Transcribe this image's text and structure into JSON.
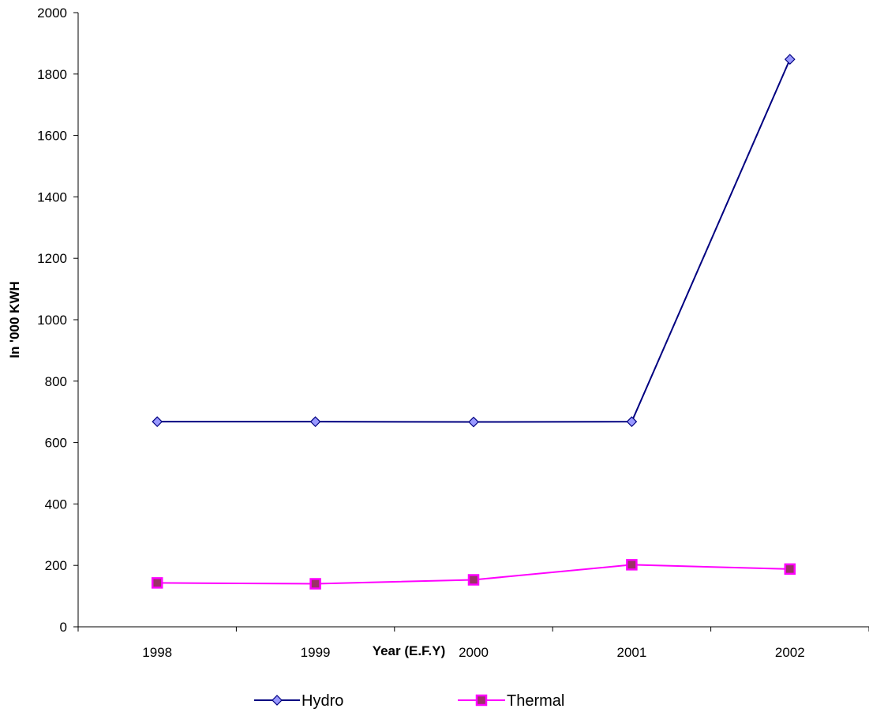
{
  "chart_data": {
    "type": "line",
    "xlabel": "Year (E.F.Y)",
    "ylabel": "In '000 KWH",
    "ylim": [
      0,
      2000
    ],
    "yticks": [
      0,
      200,
      400,
      600,
      800,
      1000,
      1200,
      1400,
      1600,
      1800,
      2000
    ],
    "categories": [
      "1998",
      "1999",
      "2000",
      "2001",
      "2002"
    ],
    "grid": false,
    "legend": "bottom",
    "series": [
      {
        "name": "Hydro",
        "values": [
          668,
          668,
          667,
          668,
          1848
        ],
        "color": "#000080",
        "marker": "diamond",
        "marker_fill": "#9999ff"
      },
      {
        "name": "Thermal",
        "values": [
          143,
          140,
          153,
          202,
          188
        ],
        "color": "#ff00ff",
        "marker": "square",
        "marker_fill": "#993366"
      }
    ]
  }
}
